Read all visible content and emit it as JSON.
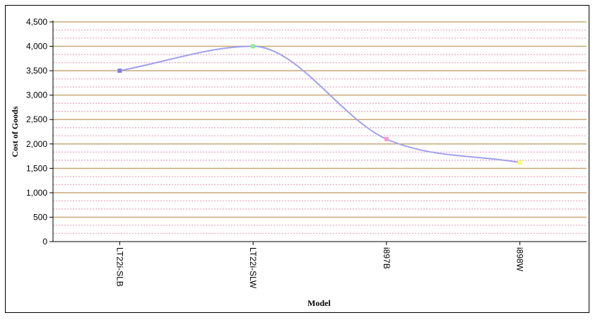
{
  "chart_data": {
    "type": "line",
    "categories": [
      "LT22i-SLB",
      "LT22i-SLW",
      "i897B",
      "i898W"
    ],
    "series": [
      {
        "values": [
          3500,
          4000,
          2100,
          1620
        ],
        "color": "#a0a0f0"
      }
    ],
    "marker_colors": [
      "#8080e0",
      "#90ee90",
      "#ff99cc",
      "#ffff66"
    ],
    "xlabel": "Model",
    "ylabel": "Cost of Goods",
    "ylim": [
      0,
      4500
    ],
    "y_ticks": [
      "0",
      "500",
      "1,000",
      "1,500",
      "2,000",
      "2,500",
      "3,000",
      "3,500",
      "4,000",
      "4,500"
    ],
    "y_tick_step": 500,
    "grid": true,
    "major_grid_color": "#c8a878",
    "minor_grid_color": "#f0a8c8",
    "line_style": "smooth"
  }
}
